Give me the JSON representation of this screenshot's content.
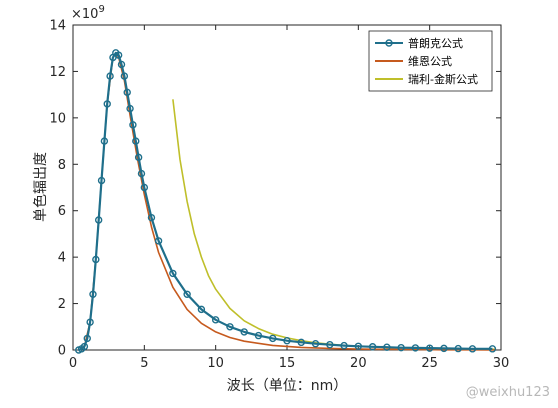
{
  "chart_data": {
    "type": "line",
    "title": "",
    "xlabel": "波长（单位：nm）",
    "ylabel": "单色辐出度",
    "y_exponent_base": "×10",
    "y_exponent_power": "9",
    "xlim": [
      0,
      30
    ],
    "ylim": [
      0,
      14
    ],
    "x_ticks": [
      0,
      5,
      10,
      15,
      20,
      25,
      30
    ],
    "y_ticks": [
      0,
      2,
      4,
      6,
      8,
      10,
      12,
      14
    ],
    "grid": false,
    "legend_position": "top-right",
    "series": [
      {
        "name": "普朗克公式",
        "color": "#1f6f8b",
        "marker": "circle",
        "x": [
          0.4,
          0.6,
          0.8,
          1.0,
          1.2,
          1.4,
          1.6,
          1.8,
          2.0,
          2.2,
          2.4,
          2.6,
          2.8,
          3.0,
          3.2,
          3.4,
          3.6,
          3.8,
          4.0,
          4.2,
          4.4,
          4.6,
          4.8,
          5.0,
          5.5,
          6.0,
          7.0,
          8.0,
          9.0,
          10.0,
          11.0,
          12.0,
          13.0,
          14.0,
          15.0,
          16.0,
          17.0,
          18.0,
          19.0,
          20.0,
          21.0,
          22.0,
          23.0,
          24.0,
          25.0,
          26.0,
          27.0,
          28.0,
          29.4
        ],
        "y": [
          0.0,
          0.05,
          0.15,
          0.5,
          1.2,
          2.4,
          3.9,
          5.6,
          7.3,
          9.0,
          10.6,
          11.8,
          12.6,
          12.8,
          12.7,
          12.3,
          11.8,
          11.1,
          10.4,
          9.7,
          9.0,
          8.3,
          7.6,
          7.0,
          5.7,
          4.7,
          3.3,
          2.4,
          1.75,
          1.3,
          1.0,
          0.78,
          0.62,
          0.5,
          0.4,
          0.33,
          0.27,
          0.23,
          0.19,
          0.16,
          0.14,
          0.12,
          0.1,
          0.09,
          0.08,
          0.07,
          0.06,
          0.05,
          0.05
        ]
      },
      {
        "name": "维恩公式",
        "color": "#c65a1e",
        "marker": "none",
        "x": [
          0.4,
          0.8,
          1.2,
          1.6,
          2.0,
          2.4,
          2.8,
          3.0,
          3.2,
          3.6,
          4.0,
          4.5,
          5.0,
          5.5,
          6.0,
          7.0,
          8.0,
          9.0,
          10.0,
          11.0,
          12.0,
          14.0,
          16.0,
          18.0,
          20.0,
          22.0,
          24.0,
          26.0,
          28.0,
          29.6
        ],
        "y": [
          0.0,
          0.15,
          1.2,
          3.9,
          7.3,
          10.6,
          12.6,
          12.8,
          12.6,
          11.6,
          10.1,
          8.3,
          6.7,
          5.3,
          4.2,
          2.7,
          1.75,
          1.15,
          0.78,
          0.54,
          0.38,
          0.2,
          0.11,
          0.07,
          0.04,
          0.03,
          0.02,
          0.01,
          0.01,
          0.0
        ]
      },
      {
        "name": "瑞利-金斯公式",
        "color": "#bfbf2a",
        "marker": "none",
        "x": [
          7.0,
          7.5,
          8.0,
          8.5,
          9.0,
          9.5,
          10.0,
          11.0,
          12.0,
          13.0,
          14.0,
          15.0,
          16.0,
          17.0,
          18.0,
          19.0,
          20.0,
          22.0,
          24.0,
          26.0,
          28.0,
          29.6
        ],
        "y": [
          10.8,
          8.2,
          6.4,
          5.0,
          4.0,
          3.2,
          2.62,
          1.79,
          1.26,
          0.92,
          0.68,
          0.52,
          0.4,
          0.31,
          0.25,
          0.2,
          0.16,
          0.11,
          0.08,
          0.06,
          0.04,
          0.03
        ]
      }
    ]
  },
  "watermark": "@weixhu123"
}
